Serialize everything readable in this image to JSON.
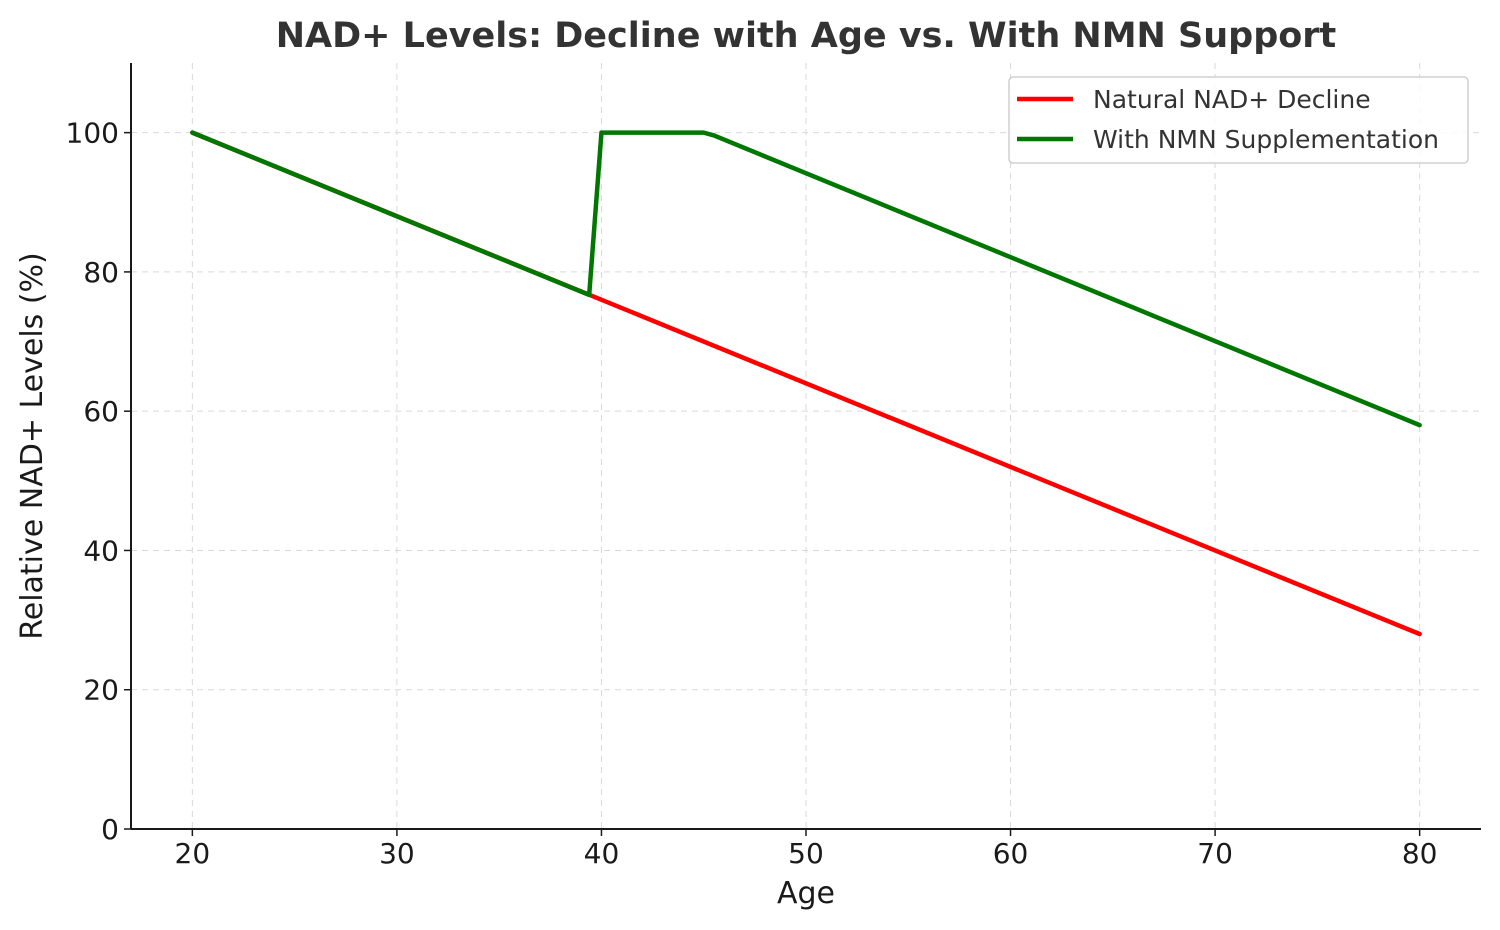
{
  "chart_data": {
    "type": "line",
    "title": "NAD+ Levels: Decline with Age vs. With NMN Support",
    "xlabel": "Age",
    "ylabel": "Relative NAD+ Levels (%)",
    "xlim": [
      17,
      83
    ],
    "ylim": [
      0,
      110
    ],
    "xticks": [
      20,
      30,
      40,
      50,
      60,
      70,
      80
    ],
    "yticks": [
      0,
      20,
      40,
      60,
      80,
      100
    ],
    "grid": true,
    "legend_position": "top-right",
    "series": [
      {
        "name": "Natural NAD+ Decline",
        "color": "#ff0000",
        "x": [
          20,
          80
        ],
        "y": [
          100,
          28
        ]
      },
      {
        "name": "With NMN Supplementation",
        "color": "#007700",
        "x": [
          20,
          39.4,
          40,
          45,
          45.5,
          80
        ],
        "y": [
          100,
          76.7,
          100,
          100,
          99.6,
          58
        ]
      }
    ]
  }
}
